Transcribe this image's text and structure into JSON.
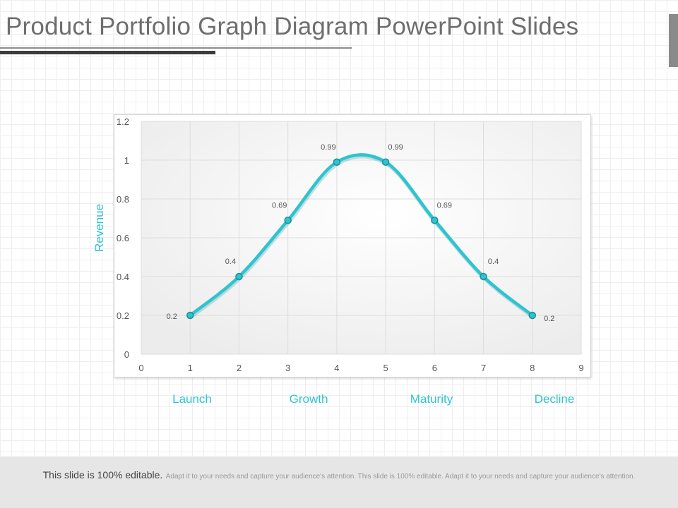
{
  "slide": {
    "title": "Product Portfolio Graph Diagram PowerPoint Slides",
    "footer_main": "This slide is 100% editable.",
    "footer_sub": "Adapt it to your needs and capture your audience's attention. This slide is 100% editable. Adapt it to your needs and capture your audience's attention."
  },
  "stages": [
    "Launch",
    "Growth",
    "Maturity",
    "Decline"
  ],
  "colors": {
    "accent": "#2ec4cf",
    "title": "#6e6e6e",
    "grid": "#dddddd"
  },
  "chart_data": {
    "type": "line",
    "title": "",
    "xlabel": "",
    "ylabel": "Revenue",
    "x": [
      1,
      2,
      3,
      4,
      5,
      6,
      7,
      8
    ],
    "series": [
      {
        "values": [
          0.2,
          0.4,
          0.69,
          0.99,
          0.99,
          0.69,
          0.4,
          0.2
        ]
      }
    ],
    "data_labels": [
      "0.2",
      "0.4",
      "0.69",
      "0.99",
      "0.99",
      "0.69",
      "0.4",
      "0.2"
    ],
    "xlim": [
      0,
      9
    ],
    "ylim": [
      0,
      1.2
    ],
    "xticks": [
      "0",
      "1",
      "2",
      "3",
      "4",
      "5",
      "6",
      "7",
      "8",
      "9"
    ],
    "yticks": [
      "0",
      "0.2",
      "0.4",
      "0.6",
      "0.8",
      "1",
      "1.2"
    ],
    "smooth": true,
    "grid": true
  }
}
